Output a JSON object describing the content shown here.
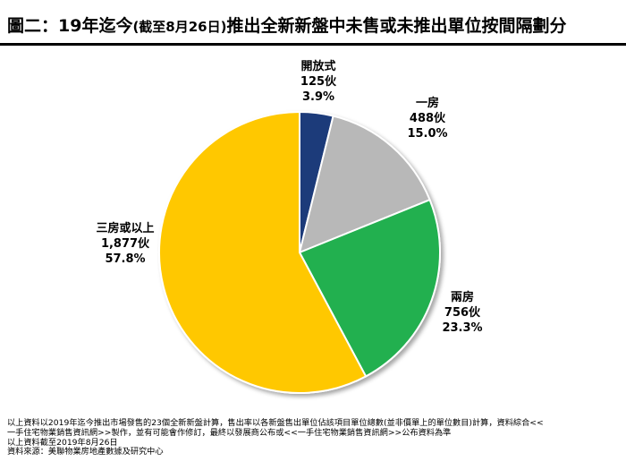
{
  "title": {
    "main": "圖二：19年迄今",
    "paren": "(截至8月26日)",
    "rest": "推出全新新盤中未售或未推出單位按間隔劃分"
  },
  "chart_data": {
    "type": "pie",
    "title": "圖二：19年迄今(截至8月26日)推出全新新盤中未售或未推出單位按間隔劃分",
    "slices": [
      {
        "label": "開放式",
        "count": "125伙",
        "value": 125,
        "percent": "3.9%",
        "color": "#1f3a7a"
      },
      {
        "label": "一房",
        "count": "488伙",
        "value": 488,
        "percent": "15.0%",
        "color": "#b8b8b8"
      },
      {
        "label": "兩房",
        "count": "756伙",
        "value": 756,
        "percent": "23.3%",
        "color": "#22b04f"
      },
      {
        "label": "三房或以上",
        "count": "1,877伙",
        "value": 1877,
        "percent": "57.8%",
        "color": "#ffc800"
      }
    ]
  },
  "notes": [
    "以上資料以2019年迄今推出市場發售的23個全新新盤計算，售出率以各新盤售出單位佔該項目單位總數(並非價單上的單位數目)計算，資料綜合<<",
    "一手住宅物業銷售資訊網>>製作，並有可能會作修訂，最終以發展商公布或<<一手住宅物業銷售資訊網>>公布資料為準",
    "以上資料截至2019年8月26日",
    "資料來源：美聯物業房地產數據及研究中心"
  ]
}
